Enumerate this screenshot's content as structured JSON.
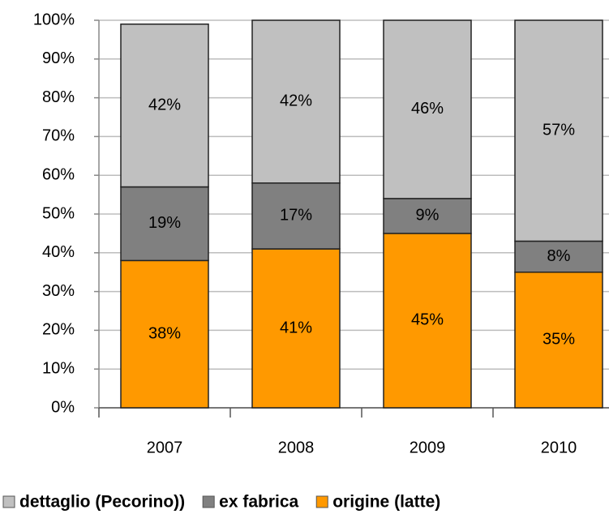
{
  "chart_data": {
    "type": "stacked_bar",
    "categories": [
      "2007",
      "2008",
      "2009",
      "2010"
    ],
    "series": [
      {
        "name": "dettaglio (Pecorino))",
        "color": "#c0c0c0",
        "values": [
          42,
          42,
          46,
          57
        ],
        "value_labels": [
          "42%",
          "42%",
          "46%",
          "57%"
        ]
      },
      {
        "name": "ex fabrica",
        "color": "#808080",
        "values": [
          19,
          17,
          9,
          8
        ],
        "value_labels": [
          "19%",
          "17%",
          "9%",
          "8%"
        ]
      },
      {
        "name": "origine (latte)",
        "color": "#ff9900",
        "values": [
          38,
          41,
          45,
          35
        ],
        "value_labels": [
          "38%",
          "41%",
          "45%",
          "35%"
        ]
      }
    ],
    "ylim": [
      0,
      100
    ],
    "yticks": [
      {
        "value": 0,
        "label": "0%"
      },
      {
        "value": 10,
        "label": "10%"
      },
      {
        "value": 20,
        "label": "20%"
      },
      {
        "value": 30,
        "label": "30%"
      },
      {
        "value": 40,
        "label": "40%"
      },
      {
        "value": 50,
        "label": "50%"
      },
      {
        "value": 60,
        "label": "60%"
      },
      {
        "value": 70,
        "label": "70%"
      },
      {
        "value": 80,
        "label": "80%"
      },
      {
        "value": 90,
        "label": "90%"
      },
      {
        "value": 100,
        "label": "100%"
      }
    ],
    "grid": true,
    "legend": "bottom"
  }
}
